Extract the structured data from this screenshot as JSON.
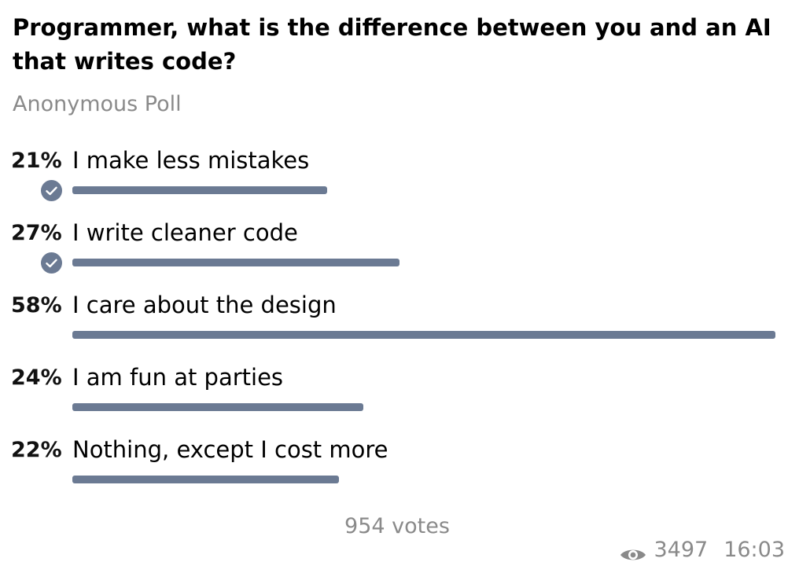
{
  "poll": {
    "question": "Programmer, what is the difference between you and an AI that writes code?",
    "type_label": "Anonymous Poll",
    "options": [
      {
        "percent_label": "21%",
        "text": "I make less mistakes",
        "percent": 21,
        "selected": true
      },
      {
        "percent_label": "27%",
        "text": "I write cleaner code",
        "percent": 27,
        "selected": true
      },
      {
        "percent_label": "58%",
        "text": "I care about the design",
        "percent": 58,
        "selected": false
      },
      {
        "percent_label": "24%",
        "text": "I am fun at parties",
        "percent": 24,
        "selected": false
      },
      {
        "percent_label": "22%",
        "text": "Nothing, except I cost more",
        "percent": 22,
        "selected": false
      }
    ],
    "votes_label": "954 votes",
    "views": "3497",
    "time": "16:03",
    "bar_color": "#6b7a93",
    "check_icon": "check-icon",
    "views_icon": "eye-icon"
  }
}
